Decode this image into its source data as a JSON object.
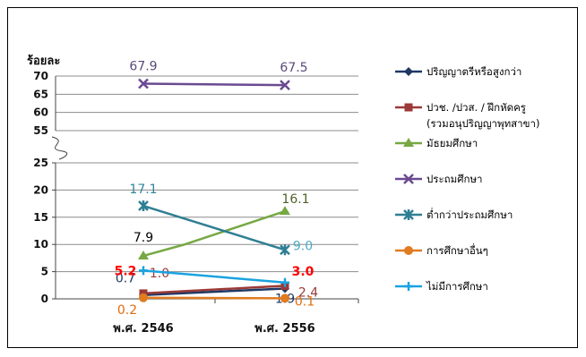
{
  "chart_data": {
    "type": "line",
    "ylabel": "ร้อยละ",
    "categories": [
      "พ.ศ. 2546",
      "พ.ศ. 2556"
    ],
    "y_ticks_upper": [
      "70",
      "65",
      "60",
      "55"
    ],
    "y_ticks_lower": [
      "25",
      "20",
      "15",
      "10",
      "5",
      "0"
    ],
    "axis_break": {
      "from": 25,
      "to": 55
    },
    "grid": true,
    "legend_position": "right",
    "series": [
      {
        "name": "ปริญญาตรีหรือสูงกว่า",
        "color": "#1f3864",
        "marker": "diamond",
        "values": [
          0.7,
          1.9
        ],
        "labels": [
          "0.7",
          "1.9"
        ],
        "label_colors": [
          "#1f3864",
          "#1f3864"
        ]
      },
      {
        "name": "ปวช. /ปวส. / ฝึกหัดครู",
        "name_line2": "(รวมอนุปริญญาพุทสาขา)",
        "color": "#9b3a38",
        "marker": "square",
        "values": [
          1.0,
          2.4
        ],
        "labels": [
          "1.0",
          "2.4"
        ],
        "label_colors": [
          "#9b3a38",
          "#9b3a38"
        ]
      },
      {
        "name": "มัธยมศึกษา",
        "color": "#77a843",
        "marker": "triangle",
        "values": [
          7.9,
          16.1
        ],
        "labels": [
          "7.9",
          "16.1"
        ],
        "label_colors": [
          "#000000",
          "#4f6228"
        ]
      },
      {
        "name": "ประถมศึกษา",
        "color": "#6a4a91",
        "marker": "x",
        "values": [
          67.9,
          67.5
        ],
        "labels": [
          "67.9",
          "67.5"
        ],
        "label_colors": [
          "#5b4a7a",
          "#5b4a7a"
        ]
      },
      {
        "name": "ต่ำกว่าประถมศึกษา",
        "color": "#2f7f93",
        "marker": "star",
        "values": [
          17.1,
          9.0
        ],
        "labels": [
          "17.1",
          "9.0"
        ],
        "label_colors": [
          "#31859c",
          "#4bacc6"
        ]
      },
      {
        "name": "การศึกษาอื่นๆ",
        "color": "#e07b20",
        "marker": "circle",
        "values": [
          0.2,
          0.1
        ],
        "labels": [
          "0.2",
          "0.1"
        ],
        "label_colors": [
          "#e36c09",
          "#e36c09"
        ]
      },
      {
        "name": "ไม่มีการศึกษา",
        "color": "#1aa3e0",
        "marker": "plus",
        "values": [
          5.2,
          3.0
        ],
        "labels": [
          "5.2",
          "3.0"
        ],
        "label_colors": [
          "#ff0000",
          "#ff0000"
        ]
      }
    ]
  }
}
